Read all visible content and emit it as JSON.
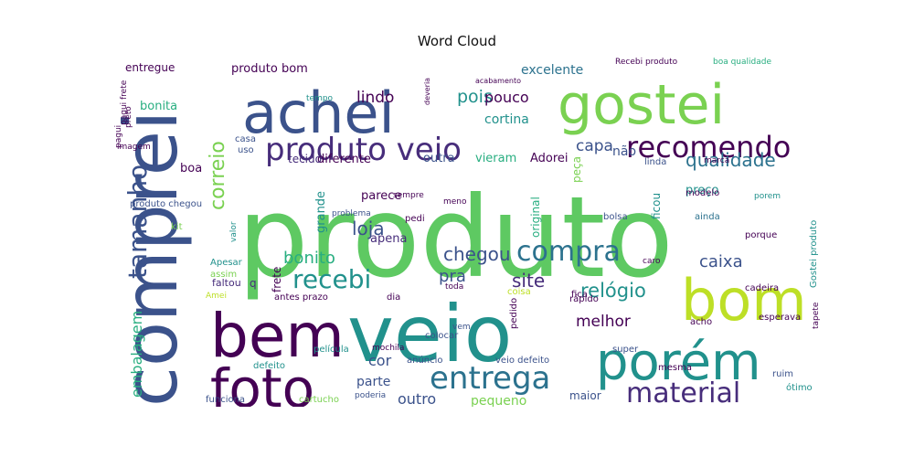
{
  "chart_data": {
    "type": "wordcloud",
    "title": "Word Cloud",
    "words": [
      {
        "text": "produto",
        "weight": 100,
        "color": "#5ec962"
      },
      {
        "text": "veio",
        "weight": 78,
        "color": "#21918c"
      },
      {
        "text": "comprei",
        "weight": 72,
        "color": "#3b528b"
      },
      {
        "text": "bem",
        "weight": 62,
        "color": "#440154"
      },
      {
        "text": "achei",
        "weight": 58,
        "color": "#3b528b"
      },
      {
        "text": "gostei",
        "weight": 55,
        "color": "#7ad151"
      },
      {
        "text": "bom",
        "weight": 55,
        "color": "#bddf26"
      },
      {
        "text": "foto",
        "weight": 50,
        "color": "#440154"
      },
      {
        "text": "porém",
        "weight": 50,
        "color": "#21918c"
      },
      {
        "text": "tamanho",
        "weight": 34,
        "color": "#3b528b"
      },
      {
        "text": "produto veio",
        "weight": 32,
        "color": "#472d7b"
      },
      {
        "text": "recomendo",
        "weight": 30,
        "color": "#440154"
      },
      {
        "text": "entrega",
        "weight": 30,
        "color": "#2c728e"
      },
      {
        "text": "material",
        "weight": 28,
        "color": "#472d7b"
      },
      {
        "text": "compra",
        "weight": 27,
        "color": "#2c728e"
      },
      {
        "text": "recebi",
        "weight": 26,
        "color": "#21918c"
      },
      {
        "text": "embalagem",
        "weight": 20,
        "color": "#28ae80"
      },
      {
        "text": "correio",
        "weight": 20,
        "color": "#7ad151"
      },
      {
        "text": "qualidade",
        "weight": 19,
        "color": "#2c728e"
      },
      {
        "text": "chegou",
        "weight": 19,
        "color": "#3b528b"
      },
      {
        "text": "relógio",
        "weight": 19,
        "color": "#21918c"
      },
      {
        "text": "caixa",
        "weight": 17,
        "color": "#3b528b"
      },
      {
        "text": "site",
        "weight": 18,
        "color": "#472d7b"
      },
      {
        "text": "loja",
        "weight": 18,
        "color": "#3b528b"
      },
      {
        "text": "bonito",
        "weight": 17,
        "color": "#28ae80"
      },
      {
        "text": "pois",
        "weight": 17,
        "color": "#21918c"
      },
      {
        "text": "capa",
        "weight": 16,
        "color": "#3b528b"
      },
      {
        "text": "melhor",
        "weight": 16,
        "color": "#440154"
      },
      {
        "text": "lindo",
        "weight": 16,
        "color": "#440154"
      },
      {
        "text": "pra",
        "weight": 16,
        "color": "#3b528b"
      },
      {
        "text": "outro",
        "weight": 15,
        "color": "#3b528b"
      },
      {
        "text": "pouco",
        "weight": 15,
        "color": "#440154"
      },
      {
        "text": "excelente",
        "weight": 13,
        "color": "#2c728e"
      },
      {
        "text": "cortina",
        "weight": 13,
        "color": "#21918c"
      },
      {
        "text": "parte",
        "weight": 13,
        "color": "#3b528b"
      },
      {
        "text": "pequeno",
        "weight": 13,
        "color": "#7ad151"
      },
      {
        "text": "produto bom",
        "weight": 12,
        "color": "#440154"
      },
      {
        "text": "entregue",
        "weight": 12,
        "color": "#440154"
      },
      {
        "text": "bonita",
        "weight": 12,
        "color": "#28ae80"
      },
      {
        "text": "boa",
        "weight": 12,
        "color": "#440154"
      },
      {
        "text": "não",
        "weight": 13,
        "color": "#3b528b"
      },
      {
        "text": "cor",
        "weight": 14,
        "color": "#3b528b"
      },
      {
        "text": "grande",
        "weight": 12,
        "color": "#21918c"
      },
      {
        "text": "parece",
        "weight": 12,
        "color": "#440154"
      },
      {
        "text": "apena",
        "weight": 12,
        "color": "#472d7b"
      },
      {
        "text": "preço",
        "weight": 12,
        "color": "#21918c"
      },
      {
        "text": "vieram",
        "weight": 12,
        "color": "#28ae80"
      },
      {
        "text": "Adorei",
        "weight": 12,
        "color": "#440154"
      },
      {
        "text": "diferente",
        "weight": 11,
        "color": "#440154"
      },
      {
        "text": "tecido",
        "weight": 11,
        "color": "#472d7b"
      },
      {
        "text": "outra",
        "weight": 11,
        "color": "#3b528b"
      },
      {
        "text": "frete",
        "weight": 11,
        "color": "#440154"
      },
      {
        "text": "maior",
        "weight": 11,
        "color": "#3b528b"
      },
      {
        "text": "peça",
        "weight": 11,
        "color": "#7ad151"
      },
      {
        "text": "ficou",
        "weight": 10,
        "color": "#21918c"
      },
      {
        "text": "original",
        "weight": 10,
        "color": "#28ae80"
      },
      {
        "text": "porque",
        "weight": 9,
        "color": "#440154"
      },
      {
        "text": "modelo",
        "weight": 9,
        "color": "#440154"
      },
      {
        "text": "bolsa",
        "weight": 9,
        "color": "#3b528b"
      },
      {
        "text": "ainda",
        "weight": 9,
        "color": "#2c728e"
      },
      {
        "text": "cadeira",
        "weight": 9,
        "color": "#440154"
      },
      {
        "text": "rápido",
        "weight": 9,
        "color": "#440154"
      },
      {
        "text": "acho",
        "weight": 9,
        "color": "#440154"
      },
      {
        "text": "super",
        "weight": 9,
        "color": "#3b528b"
      },
      {
        "text": "mesma",
        "weight": 8,
        "color": "#440154"
      },
      {
        "text": "ruim",
        "weight": 8,
        "color": "#3b528b"
      },
      {
        "text": "ótimo",
        "weight": 8,
        "color": "#21918c"
      },
      {
        "text": "esperava",
        "weight": 8,
        "color": "#440154"
      },
      {
        "text": "colocar",
        "weight": 9,
        "color": "#3b528b"
      },
      {
        "text": "película",
        "weight": 9,
        "color": "#21918c"
      },
      {
        "text": "anúncio",
        "weight": 9,
        "color": "#3b528b"
      },
      {
        "text": "veio defeito",
        "weight": 9,
        "color": "#3b528b"
      },
      {
        "text": "antes prazo",
        "weight": 8,
        "color": "#440154"
      },
      {
        "text": "dia",
        "weight": 9,
        "color": "#440154"
      },
      {
        "text": "coisa",
        "weight": 8,
        "color": "#bddf26"
      },
      {
        "text": "fica",
        "weight": 8,
        "color": "#440154"
      },
      {
        "text": "pedido",
        "weight": 8,
        "color": "#440154"
      },
      {
        "text": "defeito",
        "weight": 9,
        "color": "#21918c"
      },
      {
        "text": "funciona",
        "weight": 9,
        "color": "#3b528b"
      },
      {
        "text": "cartucho",
        "weight": 9,
        "color": "#7ad151"
      },
      {
        "text": "poderia",
        "weight": 8,
        "color": "#3b528b"
      },
      {
        "text": "mochila",
        "weight": 8,
        "color": "#440154"
      },
      {
        "text": "faltou",
        "weight": 9,
        "color": "#472d7b"
      },
      {
        "text": "Apesar",
        "weight": 9,
        "color": "#21918c"
      },
      {
        "text": "assim",
        "weight": 8,
        "color": "#7ad151"
      },
      {
        "text": "Amei",
        "weight": 8,
        "color": "#bddf26"
      },
      {
        "text": "kit",
        "weight": 8,
        "color": "#7ad151"
      },
      {
        "text": "valor",
        "weight": 8,
        "color": "#21918c"
      },
      {
        "text": "produto chegou",
        "weight": 8,
        "color": "#3b528b"
      },
      {
        "text": "imagem",
        "weight": 8,
        "color": "#440154"
      },
      {
        "text": "casa",
        "weight": 8,
        "color": "#3b528b"
      },
      {
        "text": "uso",
        "weight": 8,
        "color": "#3b528b"
      },
      {
        "text": "tempo",
        "weight": 7,
        "color": "#21918c"
      },
      {
        "text": "acabamento",
        "weight": 7,
        "color": "#440154"
      },
      {
        "text": "Recebi produto",
        "weight": 7,
        "color": "#440154"
      },
      {
        "text": "boa qualidade",
        "weight": 7,
        "color": "#28ae80"
      },
      {
        "text": "linda",
        "weight": 8,
        "color": "#3b528b"
      },
      {
        "text": "marca",
        "weight": 7,
        "color": "#440154"
      },
      {
        "text": "caro",
        "weight": 7,
        "color": "#440154"
      },
      {
        "text": "Gostei produto",
        "weight": 7,
        "color": "#21918c"
      },
      {
        "text": "tapete",
        "weight": 7,
        "color": "#440154"
      },
      {
        "text": "porem",
        "weight": 7,
        "color": "#21918c"
      },
      {
        "text": "problema",
        "weight": 7,
        "color": "#3b528b"
      },
      {
        "text": "sempre",
        "weight": 7,
        "color": "#440154"
      },
      {
        "text": "meno",
        "weight": 7,
        "color": "#440154"
      },
      {
        "text": "pedi",
        "weight": 8,
        "color": "#440154"
      },
      {
        "text": "toda",
        "weight": 7,
        "color": "#440154"
      },
      {
        "text": "vem",
        "weight": 7,
        "color": "#3b528b"
      },
      {
        "text": "deveria",
        "weight": 7,
        "color": "#440154"
      },
      {
        "text": "pagui frete",
        "weight": 7,
        "color": "#440154"
      },
      {
        "text": "preto",
        "weight": 7,
        "color": "#440154"
      },
      {
        "text": "pagui",
        "weight": 7,
        "color": "#440154"
      },
      {
        "text": "q",
        "weight": 12,
        "color": "#472d7b"
      }
    ]
  }
}
